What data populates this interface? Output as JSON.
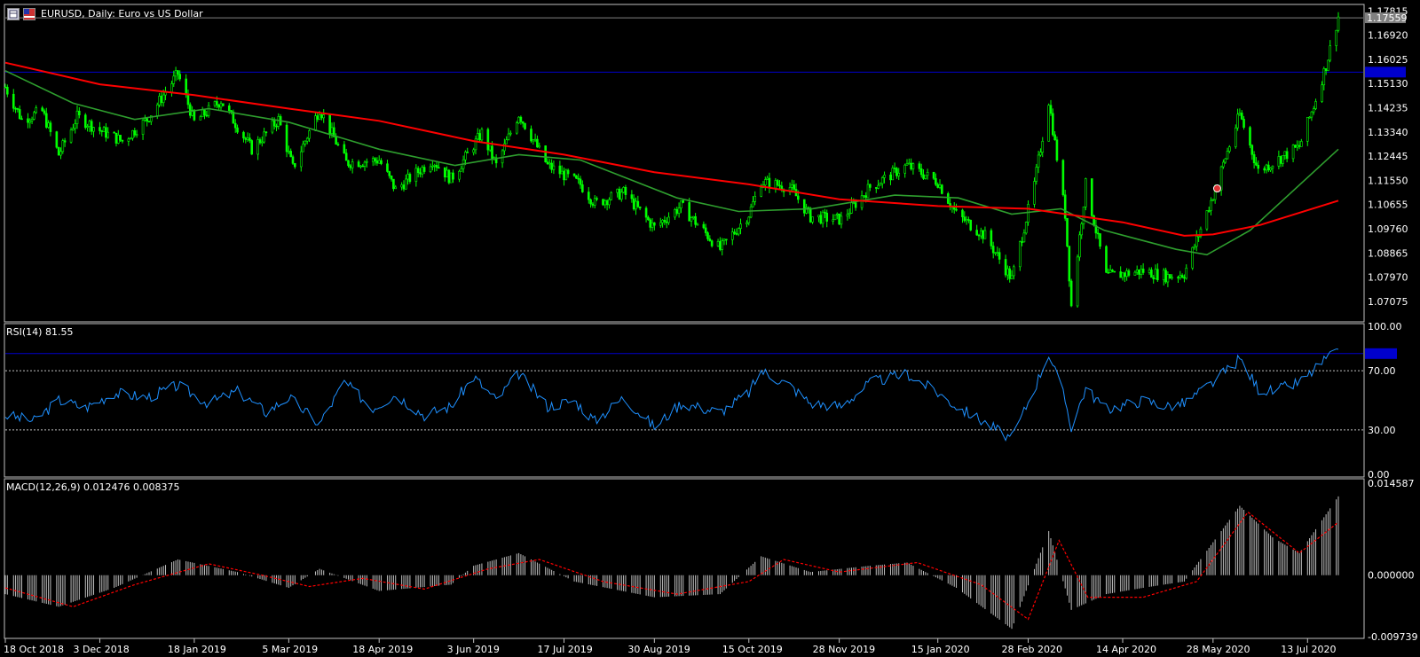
{
  "window": {
    "title": "EURUSD, Daily:  Euro vs US Dollar",
    "symbol": "EURUSD"
  },
  "icons": [
    "chart-icon",
    "flag-icon"
  ],
  "colors": {
    "background": "#000000",
    "candle": "#00ff00",
    "ma_slow": "#ff0000",
    "ma_fast": "#2e9e2e",
    "rsi_line": "#1e90ff",
    "macd_hist": "#c0c0c0",
    "macd_signal": "#ff0000",
    "level_line": "#0000cd",
    "price_tag_bg": "#0000cd",
    "current_price_tag_bg": "#808080",
    "border": "#c0c0c0"
  },
  "chart_data": [
    {
      "type": "candlestick",
      "title": "EURUSD, Daily:  Euro vs US Dollar",
      "ylim": [
        1.0635,
        1.1802
      ],
      "y_ticks": [
        "1.17815",
        "1.16920",
        "1.16025",
        "1.15130",
        "1.14235",
        "1.13340",
        "1.12445",
        "1.11550",
        "1.10655",
        "1.09760",
        "1.08865",
        "1.07970",
        "1.07075"
      ],
      "x_ticks": [
        "18 Oct 2018",
        "3 Dec 2018",
        "18 Jan 2019",
        "5 Mar 2019",
        "18 Apr 2019",
        "3 Jun 2019",
        "17 Jul 2019",
        "30 Aug 2019",
        "15 Oct 2019",
        "28 Nov 2019",
        "15 Jan 2020",
        "28 Feb 2020",
        "14 Apr 2020",
        "28 May 2020",
        "13 Jul 2020"
      ],
      "current_price": "1.17559",
      "horizontal_level": 1.1555,
      "close_series": [
        {
          "date": "2018-10-18",
          "v": 1.15
        },
        {
          "date": "2018-10-26",
          "v": 1.138
        },
        {
          "date": "2018-11-05",
          "v": 1.141
        },
        {
          "date": "2018-11-13",
          "v": 1.125
        },
        {
          "date": "2018-11-22",
          "v": 1.139
        },
        {
          "date": "2018-12-03",
          "v": 1.134
        },
        {
          "date": "2018-12-14",
          "v": 1.13
        },
        {
          "date": "2018-12-26",
          "v": 1.138
        },
        {
          "date": "2019-01-10",
          "v": 1.155
        },
        {
          "date": "2019-01-18",
          "v": 1.137
        },
        {
          "date": "2019-01-31",
          "v": 1.145
        },
        {
          "date": "2019-02-15",
          "v": 1.127
        },
        {
          "date": "2019-02-28",
          "v": 1.138
        },
        {
          "date": "2019-03-07",
          "v": 1.12
        },
        {
          "date": "2019-03-20",
          "v": 1.142
        },
        {
          "date": "2019-04-02",
          "v": 1.122
        },
        {
          "date": "2019-04-18",
          "v": 1.123
        },
        {
          "date": "2019-04-26",
          "v": 1.112
        },
        {
          "date": "2019-05-14",
          "v": 1.123
        },
        {
          "date": "2019-05-23",
          "v": 1.116
        },
        {
          "date": "2019-06-07",
          "v": 1.133
        },
        {
          "date": "2019-06-14",
          "v": 1.121
        },
        {
          "date": "2019-06-25",
          "v": 1.14
        },
        {
          "date": "2019-07-09",
          "v": 1.121
        },
        {
          "date": "2019-07-25",
          "v": 1.114
        },
        {
          "date": "2019-08-01",
          "v": 1.107
        },
        {
          "date": "2019-08-15",
          "v": 1.111
        },
        {
          "date": "2019-08-30",
          "v": 1.098
        },
        {
          "date": "2019-09-12",
          "v": 1.106
        },
        {
          "date": "2019-10-01",
          "v": 1.09
        },
        {
          "date": "2019-10-15",
          "v": 1.103
        },
        {
          "date": "2019-10-21",
          "v": 1.115
        },
        {
          "date": "2019-11-04",
          "v": 1.113
        },
        {
          "date": "2019-11-14",
          "v": 1.102
        },
        {
          "date": "2019-11-29",
          "v": 1.101
        },
        {
          "date": "2019-12-13",
          "v": 1.113
        },
        {
          "date": "2019-12-31",
          "v": 1.121
        },
        {
          "date": "2020-01-15",
          "v": 1.115
        },
        {
          "date": "2020-01-24",
          "v": 1.103
        },
        {
          "date": "2020-02-07",
          "v": 1.095
        },
        {
          "date": "2020-02-20",
          "v": 1.079
        },
        {
          "date": "2020-03-02",
          "v": 1.114
        },
        {
          "date": "2020-03-09",
          "v": 1.145
        },
        {
          "date": "2020-03-17",
          "v": 1.103
        },
        {
          "date": "2020-03-20",
          "v": 1.069
        },
        {
          "date": "2020-03-27",
          "v": 1.114
        },
        {
          "date": "2020-04-06",
          "v": 1.08
        },
        {
          "date": "2020-04-24",
          "v": 1.082
        },
        {
          "date": "2020-05-06",
          "v": 1.08
        },
        {
          "date": "2020-05-14",
          "v": 1.081
        },
        {
          "date": "2020-05-28",
          "v": 1.11
        },
        {
          "date": "2020-06-10",
          "v": 1.14
        },
        {
          "date": "2020-06-19",
          "v": 1.119
        },
        {
          "date": "2020-06-26",
          "v": 1.122
        },
        {
          "date": "2020-07-09",
          "v": 1.128
        },
        {
          "date": "2020-07-16",
          "v": 1.143
        },
        {
          "date": "2020-07-22",
          "v": 1.158
        },
        {
          "date": "2020-07-28",
          "v": 1.176
        }
      ],
      "ma_slow": [
        {
          "date": "2018-10-18",
          "v": 1.159
        },
        {
          "date": "2018-12-03",
          "v": 1.151
        },
        {
          "date": "2019-01-18",
          "v": 1.147
        },
        {
          "date": "2019-03-05",
          "v": 1.142
        },
        {
          "date": "2019-04-18",
          "v": 1.1375
        },
        {
          "date": "2019-06-03",
          "v": 1.13
        },
        {
          "date": "2019-07-17",
          "v": 1.125
        },
        {
          "date": "2019-08-30",
          "v": 1.1185
        },
        {
          "date": "2019-10-15",
          "v": 1.114
        },
        {
          "date": "2019-11-28",
          "v": 1.1085
        },
        {
          "date": "2020-01-15",
          "v": 1.106
        },
        {
          "date": "2020-02-28",
          "v": 1.105
        },
        {
          "date": "2020-04-14",
          "v": 1.1
        },
        {
          "date": "2020-05-14",
          "v": 1.095
        },
        {
          "date": "2020-05-28",
          "v": 1.0955
        },
        {
          "date": "2020-06-20",
          "v": 1.099
        },
        {
          "date": "2020-07-28",
          "v": 1.108
        }
      ],
      "ma_fast": [
        {
          "date": "2018-10-18",
          "v": 1.156
        },
        {
          "date": "2018-11-20",
          "v": 1.144
        },
        {
          "date": "2018-12-20",
          "v": 1.138
        },
        {
          "date": "2019-01-25",
          "v": 1.142
        },
        {
          "date": "2019-03-05",
          "v": 1.137
        },
        {
          "date": "2019-04-18",
          "v": 1.127
        },
        {
          "date": "2019-05-25",
          "v": 1.121
        },
        {
          "date": "2019-06-25",
          "v": 1.125
        },
        {
          "date": "2019-07-25",
          "v": 1.123
        },
        {
          "date": "2019-09-10",
          "v": 1.109
        },
        {
          "date": "2019-10-10",
          "v": 1.104
        },
        {
          "date": "2019-11-15",
          "v": 1.105
        },
        {
          "date": "2019-12-25",
          "v": 1.11
        },
        {
          "date": "2020-01-25",
          "v": 1.109
        },
        {
          "date": "2020-02-20",
          "v": 1.103
        },
        {
          "date": "2020-03-15",
          "v": 1.105
        },
        {
          "date": "2020-04-05",
          "v": 1.097
        },
        {
          "date": "2020-05-10",
          "v": 1.09
        },
        {
          "date": "2020-05-25",
          "v": 1.088
        },
        {
          "date": "2020-06-15",
          "v": 1.097
        },
        {
          "date": "2020-07-28",
          "v": 1.127
        }
      ]
    },
    {
      "type": "line",
      "title": "RSI(14) 81.55",
      "ylim": [
        0,
        100
      ],
      "y_ticks": [
        "100.00",
        "70.00",
        "30.00",
        "0.00"
      ],
      "levels": [
        70,
        30
      ],
      "current_value": 81.55,
      "series": [
        {
          "date": "2018-10-18",
          "v": 40
        },
        {
          "date": "2018-11-01",
          "v": 36
        },
        {
          "date": "2018-11-13",
          "v": 50
        },
        {
          "date": "2018-11-26",
          "v": 45
        },
        {
          "date": "2018-12-10",
          "v": 55
        },
        {
          "date": "2018-12-26",
          "v": 52
        },
        {
          "date": "2019-01-10",
          "v": 60
        },
        {
          "date": "2019-01-25",
          "v": 48
        },
        {
          "date": "2019-02-08",
          "v": 56
        },
        {
          "date": "2019-02-22",
          "v": 42
        },
        {
          "date": "2019-03-05",
          "v": 52
        },
        {
          "date": "2019-03-20",
          "v": 34
        },
        {
          "date": "2019-04-01",
          "v": 62
        },
        {
          "date": "2019-04-15",
          "v": 45
        },
        {
          "date": "2019-04-26",
          "v": 54
        },
        {
          "date": "2019-05-10",
          "v": 40
        },
        {
          "date": "2019-05-23",
          "v": 46
        },
        {
          "date": "2019-06-03",
          "v": 66
        },
        {
          "date": "2019-06-14",
          "v": 50
        },
        {
          "date": "2019-06-25",
          "v": 68
        },
        {
          "date": "2019-07-09",
          "v": 46
        },
        {
          "date": "2019-07-22",
          "v": 50
        },
        {
          "date": "2019-08-01",
          "v": 36
        },
        {
          "date": "2019-08-15",
          "v": 52
        },
        {
          "date": "2019-08-30",
          "v": 32
        },
        {
          "date": "2019-09-12",
          "v": 48
        },
        {
          "date": "2019-10-01",
          "v": 42
        },
        {
          "date": "2019-10-15",
          "v": 55
        },
        {
          "date": "2019-10-21",
          "v": 70
        },
        {
          "date": "2019-11-04",
          "v": 60
        },
        {
          "date": "2019-11-14",
          "v": 48
        },
        {
          "date": "2019-11-29",
          "v": 46
        },
        {
          "date": "2019-12-13",
          "v": 62
        },
        {
          "date": "2019-12-31",
          "v": 68
        },
        {
          "date": "2020-01-15",
          "v": 55
        },
        {
          "date": "2020-01-24",
          "v": 46
        },
        {
          "date": "2020-02-07",
          "v": 35
        },
        {
          "date": "2020-02-20",
          "v": 24
        },
        {
          "date": "2020-03-02",
          "v": 58
        },
        {
          "date": "2020-03-09",
          "v": 82
        },
        {
          "date": "2020-03-17",
          "v": 50
        },
        {
          "date": "2020-03-20",
          "v": 32
        },
        {
          "date": "2020-03-27",
          "v": 58
        },
        {
          "date": "2020-04-06",
          "v": 44
        },
        {
          "date": "2020-04-24",
          "v": 50
        },
        {
          "date": "2020-05-06",
          "v": 46
        },
        {
          "date": "2020-05-14",
          "v": 48
        },
        {
          "date": "2020-05-28",
          "v": 62
        },
        {
          "date": "2020-06-10",
          "v": 78
        },
        {
          "date": "2020-06-19",
          "v": 58
        },
        {
          "date": "2020-06-26",
          "v": 56
        },
        {
          "date": "2020-07-09",
          "v": 62
        },
        {
          "date": "2020-07-16",
          "v": 70
        },
        {
          "date": "2020-07-22",
          "v": 78
        },
        {
          "date": "2020-07-28",
          "v": 81.55
        }
      ]
    },
    {
      "type": "bar",
      "title": "MACD(12,26,9) 0.012476 0.008375",
      "ylim": [
        -0.009739,
        0.014587
      ],
      "y_ticks": [
        "0.014587",
        "0.000000",
        "-0.009739"
      ],
      "macd_value": 0.012476,
      "signal_value": 0.008375,
      "histogram": [
        {
          "date": "2018-10-18",
          "v": -0.003
        },
        {
          "date": "2018-11-13",
          "v": -0.005
        },
        {
          "date": "2018-12-10",
          "v": -0.002
        },
        {
          "date": "2019-01-10",
          "v": 0.0025
        },
        {
          "date": "2019-02-08",
          "v": 0.0005
        },
        {
          "date": "2019-03-05",
          "v": -0.002
        },
        {
          "date": "2019-03-20",
          "v": 0.001
        },
        {
          "date": "2019-04-18",
          "v": -0.0025
        },
        {
          "date": "2019-05-23",
          "v": -0.0015
        },
        {
          "date": "2019-06-03",
          "v": 0.0015
        },
        {
          "date": "2019-06-25",
          "v": 0.0035
        },
        {
          "date": "2019-07-22",
          "v": -0.001
        },
        {
          "date": "2019-08-30",
          "v": -0.0035
        },
        {
          "date": "2019-10-01",
          "v": -0.003
        },
        {
          "date": "2019-10-21",
          "v": 0.003
        },
        {
          "date": "2019-11-14",
          "v": 0.0005
        },
        {
          "date": "2019-12-13",
          "v": 0.0015
        },
        {
          "date": "2019-12-31",
          "v": 0.002
        },
        {
          "date": "2020-01-24",
          "v": -0.002
        },
        {
          "date": "2020-02-20",
          "v": -0.0085
        },
        {
          "date": "2020-03-09",
          "v": 0.007
        },
        {
          "date": "2020-03-20",
          "v": -0.0055
        },
        {
          "date": "2020-04-06",
          "v": -0.003
        },
        {
          "date": "2020-04-24",
          "v": -0.002
        },
        {
          "date": "2020-05-14",
          "v": -0.001
        },
        {
          "date": "2020-06-10",
          "v": 0.011
        },
        {
          "date": "2020-06-26",
          "v": 0.006
        },
        {
          "date": "2020-07-09",
          "v": 0.0035
        },
        {
          "date": "2020-07-28",
          "v": 0.0125
        }
      ],
      "signal": [
        {
          "date": "2018-10-18",
          "v": -0.002
        },
        {
          "date": "2018-11-20",
          "v": -0.005
        },
        {
          "date": "2018-12-20",
          "v": -0.0015
        },
        {
          "date": "2019-01-25",
          "v": 0.0018
        },
        {
          "date": "2019-02-20",
          "v": 0.0
        },
        {
          "date": "2019-03-15",
          "v": -0.0018
        },
        {
          "date": "2019-04-10",
          "v": -0.0005
        },
        {
          "date": "2019-05-10",
          "v": -0.0022
        },
        {
          "date": "2019-06-10",
          "v": 0.001
        },
        {
          "date": "2019-07-05",
          "v": 0.0025
        },
        {
          "date": "2019-08-05",
          "v": -0.001
        },
        {
          "date": "2019-09-10",
          "v": -0.003
        },
        {
          "date": "2019-10-15",
          "v": -0.001
        },
        {
          "date": "2019-11-01",
          "v": 0.0025
        },
        {
          "date": "2019-11-28",
          "v": 0.0005
        },
        {
          "date": "2020-01-05",
          "v": 0.002
        },
        {
          "date": "2020-02-05",
          "v": -0.0015
        },
        {
          "date": "2020-02-28",
          "v": -0.007
        },
        {
          "date": "2020-03-14",
          "v": 0.0055
        },
        {
          "date": "2020-03-28",
          "v": -0.0035
        },
        {
          "date": "2020-04-24",
          "v": -0.0035
        },
        {
          "date": "2020-05-20",
          "v": -0.001
        },
        {
          "date": "2020-06-14",
          "v": 0.01
        },
        {
          "date": "2020-07-09",
          "v": 0.0035
        },
        {
          "date": "2020-07-28",
          "v": 0.0084
        }
      ]
    }
  ]
}
